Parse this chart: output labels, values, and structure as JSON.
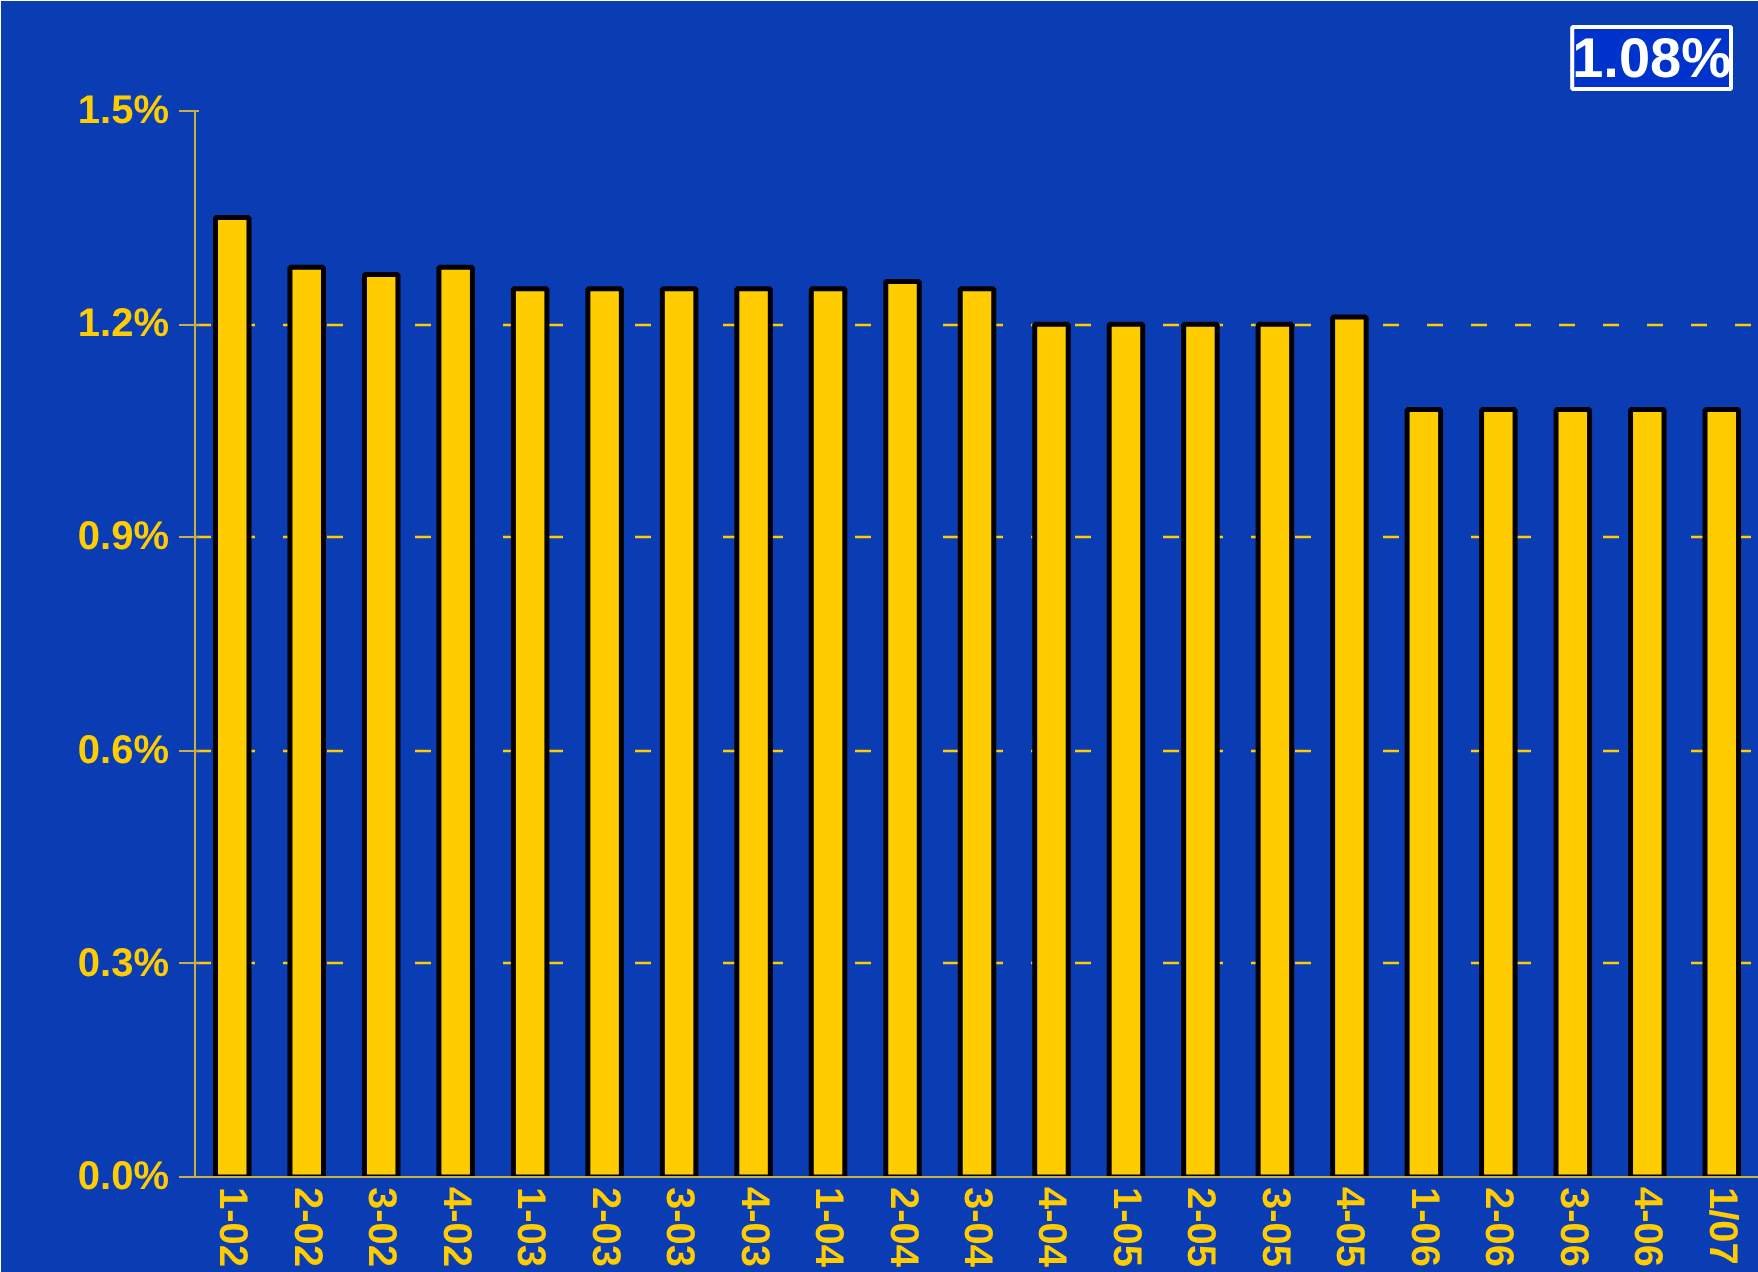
{
  "chart_data": {
    "type": "bar",
    "categories": [
      "1-02",
      "2-02",
      "3-02",
      "4-02",
      "1-03",
      "2-03",
      "3-03",
      "4-03",
      "1-04",
      "2-04",
      "3-04",
      "4-04",
      "1-05",
      "2-05",
      "3-05",
      "4-05",
      "1-06",
      "2-06",
      "3-06",
      "4-06",
      "1/07"
    ],
    "values": [
      1.35,
      1.28,
      1.27,
      1.28,
      1.25,
      1.25,
      1.25,
      1.25,
      1.25,
      1.26,
      1.25,
      1.2,
      1.2,
      1.2,
      1.2,
      1.21,
      1.08,
      1.08,
      1.08,
      1.08,
      1.08
    ],
    "color": "#ffcc00",
    "ylim": [
      0,
      1.5
    ],
    "yticks": [
      {
        "value": 0,
        "label": "0.0%"
      },
      {
        "value": 0.3,
        "label": "0.3%"
      },
      {
        "value": 0.6,
        "label": "0.6%"
      },
      {
        "value": 0.9,
        "label": "0.9%"
      },
      {
        "value": 1.2,
        "label": "1.2%"
      },
      {
        "value": 1.5,
        "label": "1.5%"
      }
    ],
    "grid": "y",
    "annotations": [
      "1.08%"
    ]
  }
}
